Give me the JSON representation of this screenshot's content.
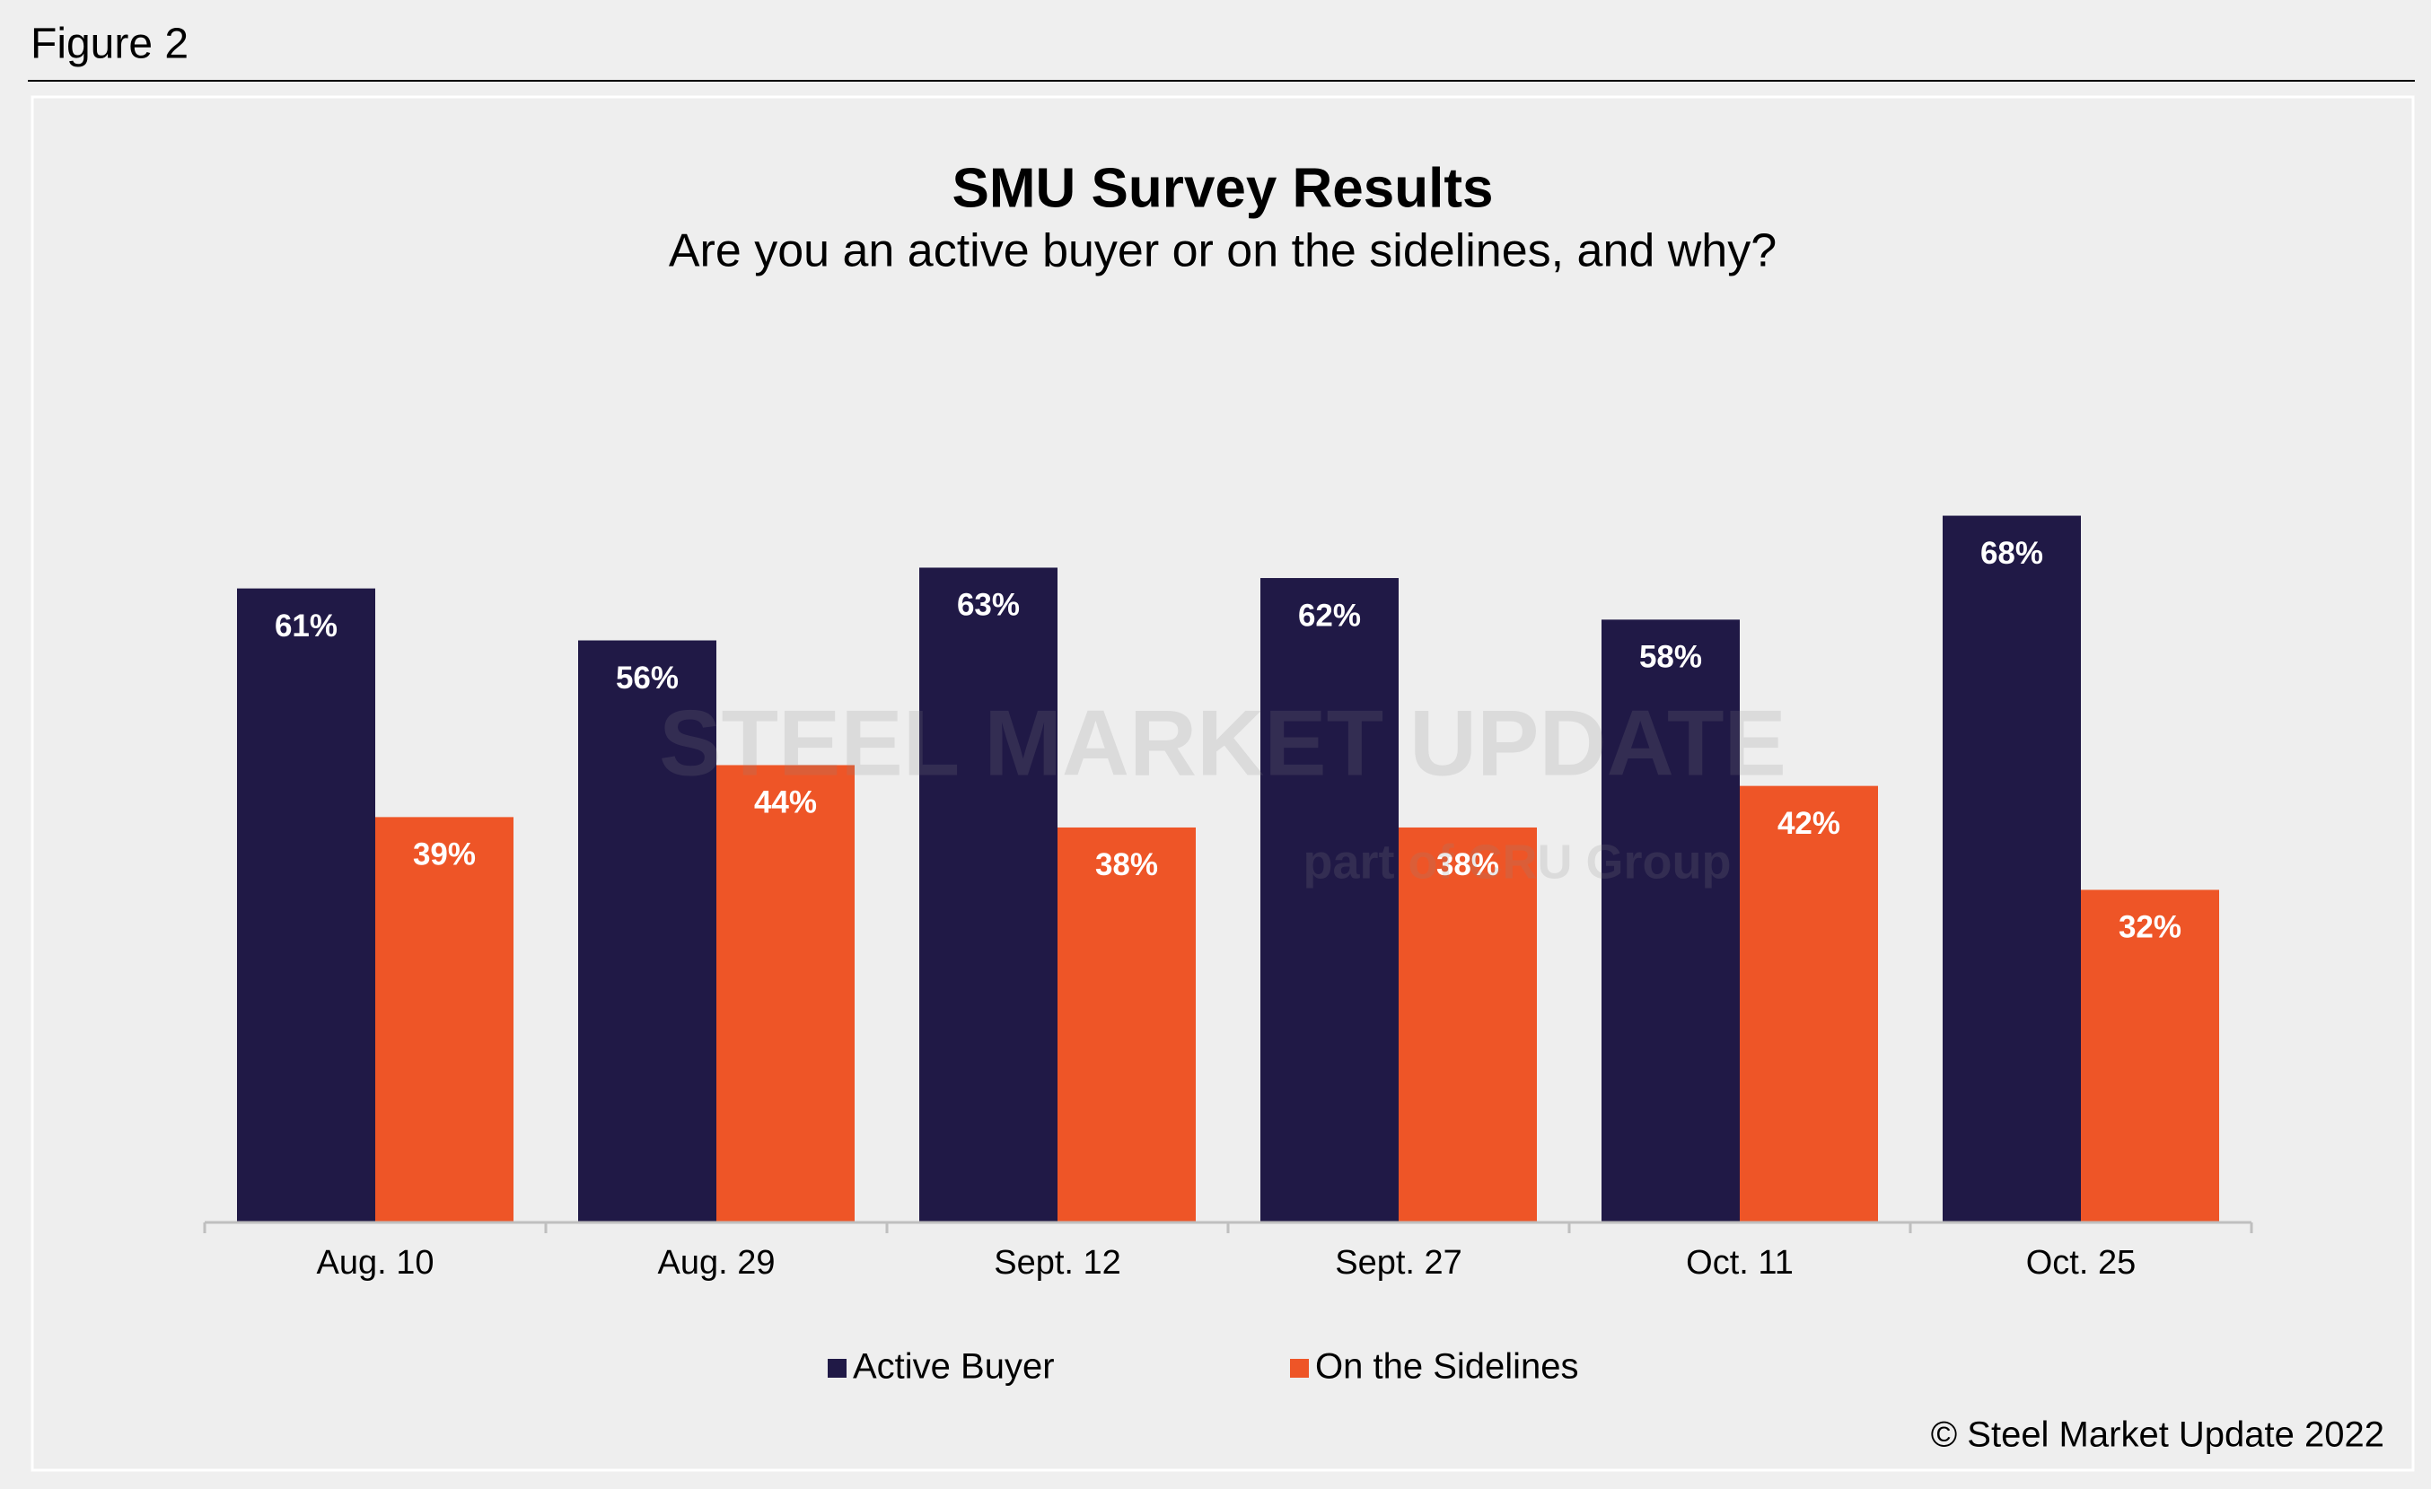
{
  "figure_label": "Figure 2",
  "chart_data": {
    "type": "bar",
    "title": "SMU Survey Results",
    "subtitle": "Are you an active buyer or on the sidelines, and why?",
    "categories": [
      "Aug. 10",
      "Aug. 29",
      "Sept. 12",
      "Sept. 27",
      "Oct. 11",
      "Oct. 25"
    ],
    "series": [
      {
        "name": "Active Buyer",
        "color": "#201946",
        "values": [
          61,
          56,
          63,
          62,
          58,
          68
        ],
        "value_labels": [
          "61%",
          "56%",
          "63%",
          "62%",
          "58%",
          "68%"
        ]
      },
      {
        "name": "On the Sidelines",
        "color": "#ee5527",
        "values": [
          39,
          44,
          38,
          38,
          42,
          32
        ],
        "value_labels": [
          "39%",
          "44%",
          "38%",
          "38%",
          "42%",
          "32%"
        ]
      }
    ],
    "legend": "bottom",
    "watermark": [
      "STEEL MARKET UPDATE",
      "part of CRU Group"
    ],
    "credit": "© Steel Market Update 2022"
  }
}
